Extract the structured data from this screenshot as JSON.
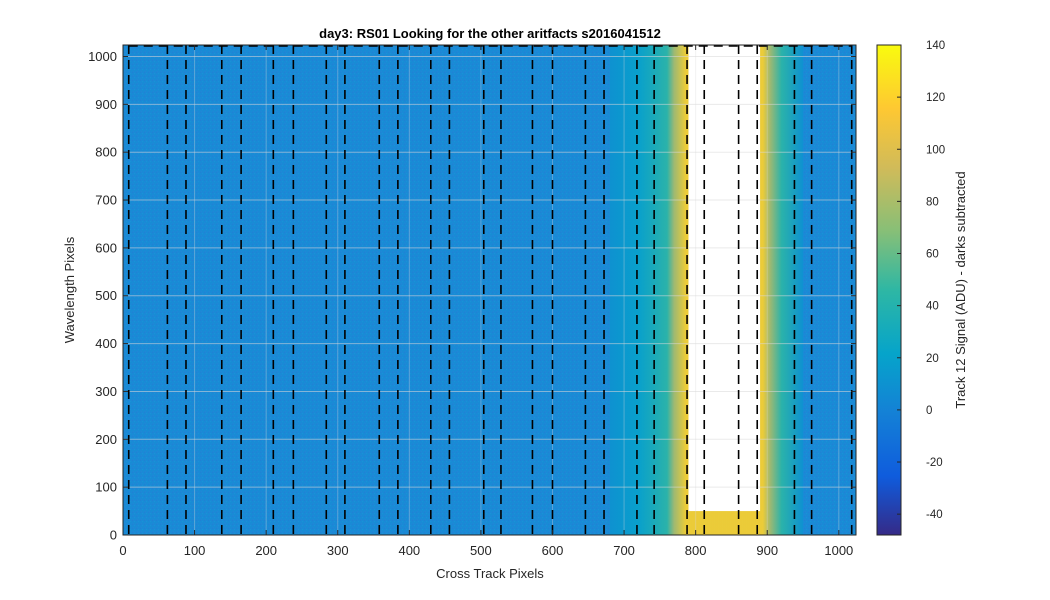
{
  "chart_data": {
    "type": "heatmap",
    "title": "day3: RS01  Looking for the other aritfacts  s2016041512",
    "xlabel": "Cross Track Pixels",
    "ylabel": "Wavelength Pixels",
    "xlim": [
      0,
      1024
    ],
    "ylim": [
      0,
      1024
    ],
    "x_ticks": [
      0,
      100,
      200,
      300,
      400,
      500,
      600,
      700,
      800,
      900,
      1000
    ],
    "y_ticks": [
      0,
      100,
      200,
      300,
      400,
      500,
      600,
      700,
      800,
      900,
      1000
    ],
    "colorbar": {
      "label": "Track 12 Signal (ADU) - darks subtracted",
      "range": [
        -48,
        140
      ],
      "ticks": [
        -40,
        -20,
        0,
        20,
        40,
        60,
        80,
        100,
        120,
        140
      ],
      "colormap": "parula"
    },
    "background_signal": 10,
    "saturated_region": {
      "x_range": [
        790,
        890
      ],
      "y_range": [
        50,
        1024
      ],
      "fill": "#ffffff"
    },
    "bright_halo": {
      "x_range": [
        680,
        950
      ],
      "peak_signal": 120
    },
    "dashed_lines_x": [
      8,
      62,
      88,
      138,
      165,
      210,
      238,
      284,
      310,
      358,
      384,
      430,
      456,
      504,
      528,
      572,
      600,
      646,
      672,
      718,
      742,
      788,
      812,
      860,
      886,
      938,
      962,
      1018
    ],
    "dashed_line_color": "#000000",
    "grid": true
  }
}
